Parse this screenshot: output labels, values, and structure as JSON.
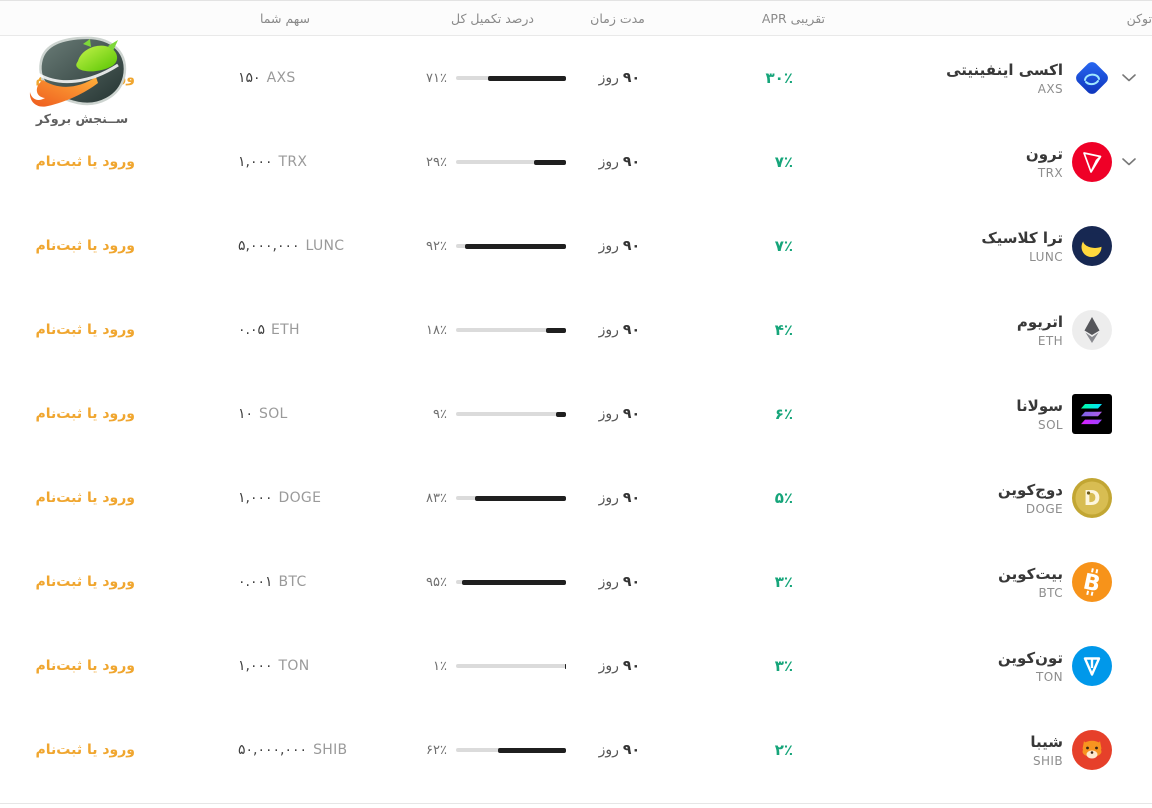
{
  "brand": {
    "name": "ســنجش بروکر",
    "login_label": "ورود یا ثبت‌نام"
  },
  "table": {
    "headers": {
      "token": "توکن",
      "apr": "APR تقریبی",
      "duration": "مدت زمان",
      "progress": "درصد تکمیل کل",
      "share": "سهم شما"
    },
    "rows": [
      {
        "name": "اکسی اینفینیتی",
        "symbol": "AXS",
        "icon": "axs-coin-icon",
        "apr": "۳۰٪",
        "duration_value": "۹۰",
        "duration_unit": "روز",
        "progress_label": "۷۱٪",
        "progress_percent": 71,
        "share_amount": "۱۵۰",
        "share_symbol": "AXS",
        "expandable": true
      },
      {
        "name": "ترون",
        "symbol": "TRX",
        "icon": "trx-coin-icon",
        "apr": "۷٪",
        "duration_value": "۹۰",
        "duration_unit": "روز",
        "progress_label": "۲۹٪",
        "progress_percent": 29,
        "share_amount": "۱,۰۰۰",
        "share_symbol": "TRX",
        "expandable": true
      },
      {
        "name": "ترا کلاسیک",
        "symbol": "LUNC",
        "icon": "lunc-coin-icon",
        "apr": "۷٪",
        "duration_value": "۹۰",
        "duration_unit": "روز",
        "progress_label": "۹۲٪",
        "progress_percent": 92,
        "share_amount": "۵,۰۰۰,۰۰۰",
        "share_symbol": "LUNC",
        "expandable": false
      },
      {
        "name": "اتریوم",
        "symbol": "ETH",
        "icon": "eth-coin-icon",
        "apr": "۴٪",
        "duration_value": "۹۰",
        "duration_unit": "روز",
        "progress_label": "۱۸٪",
        "progress_percent": 18,
        "share_amount": "۰.۰۵",
        "share_symbol": "ETH",
        "expandable": false
      },
      {
        "name": "سولانا",
        "symbol": "SOL",
        "icon": "sol-coin-icon",
        "apr": "۶٪",
        "duration_value": "۹۰",
        "duration_unit": "روز",
        "progress_label": "۹٪",
        "progress_percent": 9,
        "share_amount": "۱۰",
        "share_symbol": "SOL",
        "expandable": false
      },
      {
        "name": "دوج‌کوین",
        "symbol": "DOGE",
        "icon": "doge-coin-icon",
        "apr": "۵٪",
        "duration_value": "۹۰",
        "duration_unit": "روز",
        "progress_label": "۸۳٪",
        "progress_percent": 83,
        "share_amount": "۱,۰۰۰",
        "share_symbol": "DOGE",
        "expandable": false
      },
      {
        "name": "بیت‌کوین",
        "symbol": "BTC",
        "icon": "btc-coin-icon",
        "apr": "۳٪",
        "duration_value": "۹۰",
        "duration_unit": "روز",
        "progress_label": "۹۵٪",
        "progress_percent": 95,
        "share_amount": "۰.۰۰۱",
        "share_symbol": "BTC",
        "expandable": false
      },
      {
        "name": "تون‌کوین",
        "symbol": "TON",
        "icon": "ton-coin-icon",
        "apr": "۳٪",
        "duration_value": "۹۰",
        "duration_unit": "روز",
        "progress_label": "۱٪",
        "progress_percent": 1,
        "share_amount": "۱,۰۰۰",
        "share_symbol": "TON",
        "expandable": false
      },
      {
        "name": "شیبا",
        "symbol": "SHIB",
        "icon": "shib-coin-icon",
        "apr": "۲٪",
        "duration_value": "۹۰",
        "duration_unit": "روز",
        "progress_label": "۶۲٪",
        "progress_percent": 62,
        "share_amount": "۵۰,۰۰۰,۰۰۰",
        "share_symbol": "SHIB",
        "expandable": false
      }
    ]
  },
  "colors": {
    "apr_green": "#16a57a",
    "link_orange": "#f0a62f",
    "progress_fill": "#1f1f1f",
    "progress_track": "#dbdbdb",
    "header_text": "#8a8a8a"
  }
}
